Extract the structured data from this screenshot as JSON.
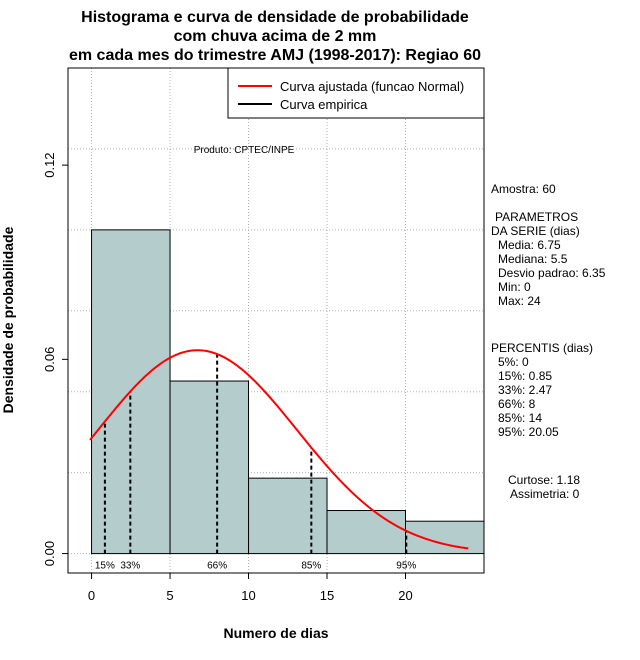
{
  "chart_data": {
    "type": "bar",
    "title_lines": [
      "Histograma e curva de densidade de probabilidade",
      "com chuva acima de 2 mm",
      "em cada mes do trimestre AMJ (1998-2017): Regiao 60"
    ],
    "xlabel": "Numero de dias",
    "ylabel": "Densidade de probabilidade",
    "xlim": [
      -1.5,
      25
    ],
    "ylim": [
      -0.006,
      0.15
    ],
    "x_ticks": [
      0,
      5,
      10,
      15,
      20
    ],
    "x_tick_labels": [
      "0",
      "5",
      "10",
      "15",
      "20"
    ],
    "y_ticks": [
      0.0,
      0.06,
      0.12
    ],
    "y_tick_labels": [
      "0.00",
      "0.06",
      "0.12"
    ],
    "grid": true,
    "histogram": {
      "bins": [
        [
          0,
          5
        ],
        [
          5,
          10
        ],
        [
          10,
          15
        ],
        [
          15,
          20
        ],
        [
          20,
          25
        ]
      ],
      "density": [
        0.1,
        0.0533,
        0.0233,
        0.0133,
        0.01
      ],
      "fill_color": "#b5cccc"
    },
    "normal_fit": {
      "mean": 6.75,
      "sd": 6.35,
      "x_from": -0.1,
      "x_to": 24,
      "color": "#ff0000"
    },
    "percentile_markers": [
      {
        "label": "15%",
        "x": 0.85
      },
      {
        "label": "33%",
        "x": 2.47
      },
      {
        "label": "66%",
        "x": 8
      },
      {
        "label": "85%",
        "x": 14
      },
      {
        "label": "95%",
        "x": 20.05
      }
    ],
    "legend": {
      "position": "top-right",
      "entries": [
        {
          "label": "Curva ajustada (funcao Normal)",
          "color": "#ff0000"
        },
        {
          "label": "Curva empirica",
          "color": "#000000"
        }
      ]
    },
    "annotation": "Produto: CPTEC/INPE"
  },
  "stats_panel": {
    "amostra": "Amostra: 60",
    "param_title_1": "PARAMETROS",
    "param_title_2": "DA SERIE (dias)",
    "media": "Media: 6.75",
    "mediana": "Mediana: 5.5",
    "desvio": "Desvio padrao: 6.35",
    "min": "Min: 0",
    "max": "Max: 24",
    "percentis_title": "PERCENTIS (dias)",
    "p5": "5%: 0",
    "p15": "15%: 0.85",
    "p33": "33%: 2.47",
    "p66": "66%: 8",
    "p85": "85%: 14",
    "p95": "95%: 20.05",
    "curtose": "Curtose: 1.18",
    "assimetria": "Assimetria: 0"
  }
}
